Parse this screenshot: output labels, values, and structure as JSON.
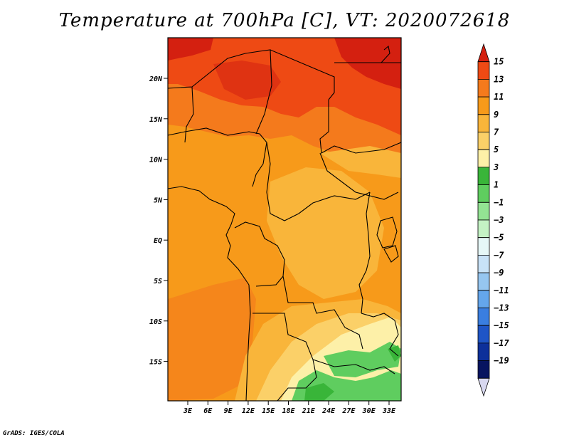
{
  "title": "Temperature at 700hPa [C], VT: 2020072618",
  "credit": "GrADS: IGES/COLA",
  "map": {
    "lat_ticks": [
      "20N",
      "15N",
      "10N",
      "5N",
      "EQ",
      "5S",
      "10S",
      "15S"
    ],
    "lon_ticks": [
      "3E",
      "6E",
      "9E",
      "12E",
      "15E",
      "18E",
      "21E",
      "24E",
      "27E",
      "30E",
      "33E"
    ]
  },
  "colorbar": {
    "labels": [
      "15",
      "13",
      "11",
      "9",
      "7",
      "5",
      "3",
      "1",
      "−1",
      "−3",
      "−5",
      "−7",
      "−9",
      "−11",
      "−13",
      "−15",
      "−17",
      "−19"
    ],
    "colors": [
      "#d42010",
      "#ee4a14",
      "#f47a1c",
      "#f79a1a",
      "#f9b53a",
      "#fbd068",
      "#fdf0a8",
      "#39b539",
      "#5fcd5f",
      "#93e393",
      "#c4f2c4",
      "#e6f7f7",
      "#c8e2f7",
      "#96c6f0",
      "#64a6ec",
      "#3a7ee0",
      "#1f55c6",
      "#0d309a",
      "#071460",
      "#d8d8f0"
    ]
  },
  "field_colors": {
    "hot": "#ee4a14",
    "warm": "#f47a1c",
    "mid": "#f79a1a",
    "mild": "#f9b53a",
    "cool": "#fbd068",
    "pale": "#fdf0a8",
    "green_light": "#5fcd5f",
    "green": "#39b539"
  }
}
